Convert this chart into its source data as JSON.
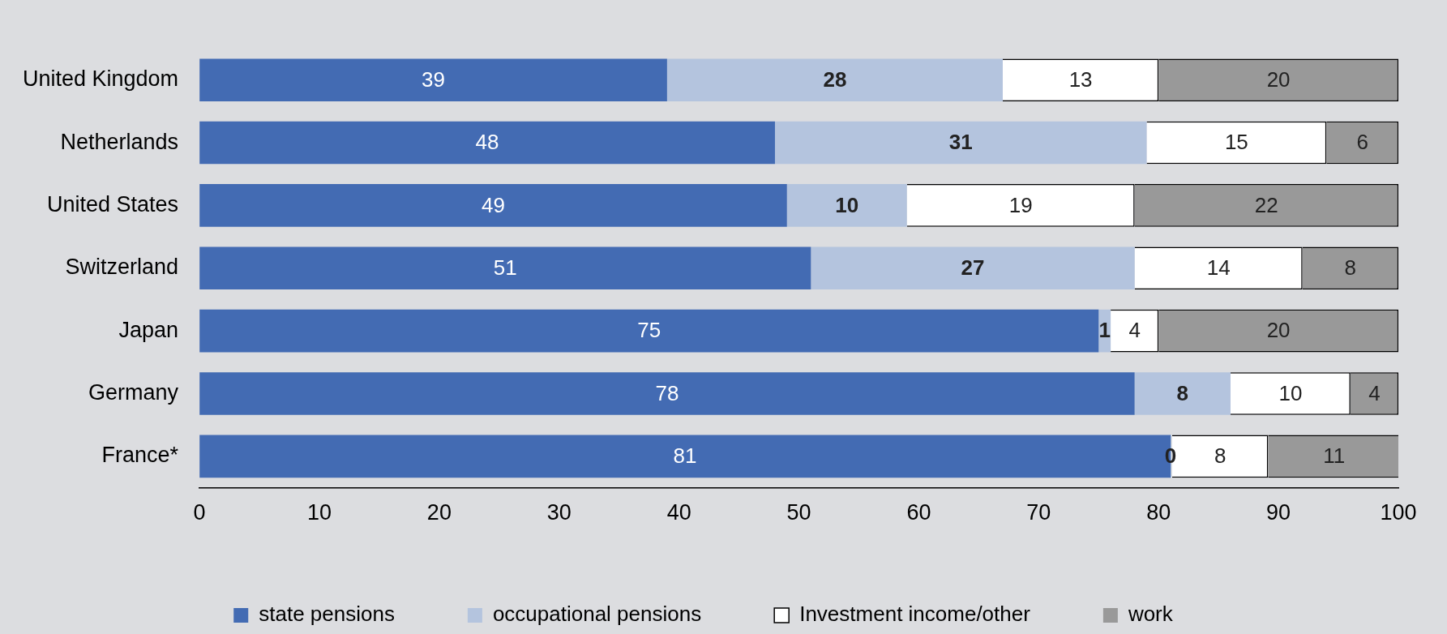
{
  "chart_data": {
    "type": "bar",
    "orientation": "horizontal",
    "stacked": true,
    "categories": [
      "United Kingdom",
      "Netherlands",
      "United States",
      "Switzerland",
      "Japan",
      "Germany",
      "France*"
    ],
    "series": [
      {
        "name": "state pensions",
        "color": "#436bb3",
        "values": [
          39,
          48,
          49,
          51,
          75,
          78,
          81
        ]
      },
      {
        "name": "occupational pensions",
        "color": "#b4c4de",
        "values": [
          28,
          31,
          10,
          27,
          1,
          8,
          0
        ]
      },
      {
        "name": "Investment income/other",
        "color": "#ffffff",
        "values": [
          13,
          15,
          19,
          14,
          4,
          10,
          8
        ]
      },
      {
        "name": "work",
        "color": "#999999",
        "values": [
          20,
          6,
          22,
          8,
          20,
          4,
          11
        ]
      }
    ],
    "xlim": [
      0,
      100
    ],
    "xticks": [
      0,
      10,
      20,
      30,
      40,
      50,
      60,
      70,
      80,
      90,
      100
    ],
    "data_labels": true,
    "legend": "bottom",
    "grid": false
  }
}
